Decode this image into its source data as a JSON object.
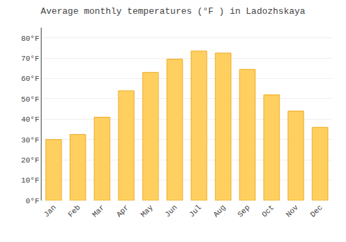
{
  "chart_data": {
    "type": "bar",
    "title": "Average monthly temperatures (°F ) in Ladozhskaya",
    "categories": [
      "Jan",
      "Feb",
      "Mar",
      "Apr",
      "May",
      "Jun",
      "Jul",
      "Aug",
      "Sep",
      "Oct",
      "Nov",
      "Dec"
    ],
    "values": [
      30,
      32.5,
      41,
      54,
      63,
      69.5,
      73.5,
      72.5,
      64.5,
      52,
      44,
      36
    ],
    "color": "#FFD060",
    "ylim": [
      0,
      85
    ],
    "yticks": [
      {
        "value": 0,
        "label": "0°F"
      },
      {
        "value": 10,
        "label": "10°F"
      },
      {
        "value": 20,
        "label": "20°F"
      },
      {
        "value": 30,
        "label": "30°F"
      },
      {
        "value": 40,
        "label": "40°F"
      },
      {
        "value": 50,
        "label": "50°F"
      },
      {
        "value": 60,
        "label": "60°F"
      },
      {
        "value": 70,
        "label": "70°F"
      },
      {
        "value": 80,
        "label": "80°F"
      }
    ],
    "grid": true
  }
}
